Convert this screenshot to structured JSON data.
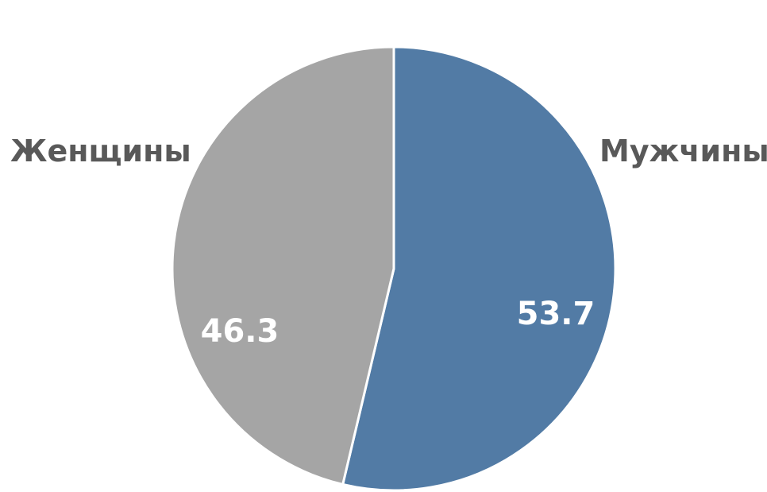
{
  "chart_data": {
    "type": "pie",
    "slices": [
      {
        "label": "Мужчины",
        "value": 53.7,
        "value_label": "53.7",
        "color": "#527ba5"
      },
      {
        "label": "Женщины",
        "value": 46.3,
        "value_label": "46.3",
        "color": "#a5a5a5"
      }
    ],
    "start_angle": "12 o'clock",
    "direction": "clockwise",
    "slice_border_color": "#ffffff"
  }
}
